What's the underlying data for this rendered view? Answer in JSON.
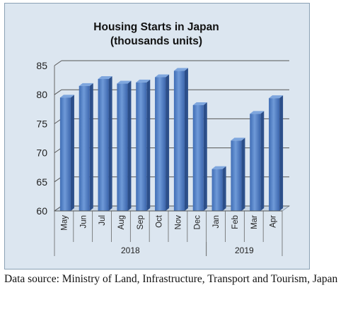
{
  "chart_data": {
    "type": "bar",
    "title_lines": [
      "Housing Starts in Japan",
      "(thousands units)"
    ],
    "categories": [
      "May",
      "Jun",
      "Jul",
      "Aug",
      "Sep",
      "Oct",
      "Nov",
      "Dec",
      "Jan",
      "Feb",
      "Mar",
      "Apr"
    ],
    "groups": [
      {
        "label": "2018",
        "categories": [
          "May",
          "Jun",
          "Jul",
          "Aug",
          "Sep",
          "Oct",
          "Nov",
          "Dec"
        ]
      },
      {
        "label": "2019",
        "categories": [
          "Jan",
          "Feb",
          "Mar",
          "Apr"
        ]
      }
    ],
    "values": [
      79.5,
      81.5,
      82.7,
      81.9,
      82.1,
      83.0,
      84.1,
      78.2,
      67.2,
      72.1,
      76.7,
      79.4
    ],
    "yticks": [
      "85",
      "80",
      "75",
      "70",
      "65",
      "60"
    ],
    "ylim": [
      60,
      85
    ],
    "grid": true,
    "bar_color": "#4a78bf"
  },
  "source_note": "Data source: Ministry of Land, Infrastructure, Transport and Tourism, Japan"
}
